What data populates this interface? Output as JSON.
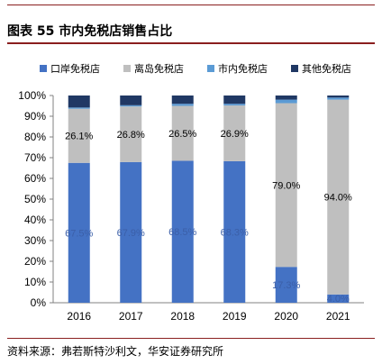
{
  "title": "图表 55 市内免税店销售占比",
  "source": "资料来源：弗若斯特沙利文，华安证券研究所",
  "chart_data": {
    "type": "bar",
    "stacked": true,
    "categories": [
      "2016",
      "2017",
      "2018",
      "2019",
      "2020",
      "2021"
    ],
    "ylim": [
      0,
      100
    ],
    "yticks": [
      "0%",
      "10%",
      "20%",
      "30%",
      "40%",
      "50%",
      "60%",
      "70%",
      "80%",
      "90%",
      "100%"
    ],
    "series": [
      {
        "name": "口岸免税店",
        "color": "#4472c4",
        "values": [
          67.5,
          67.9,
          68.5,
          68.3,
          17.3,
          4.0
        ],
        "labels": [
          "67.5%",
          "67.9%",
          "68.5%",
          "68.3%",
          "17.3%",
          "4.0%"
        ]
      },
      {
        "name": "离岛免税店",
        "color": "#bfbfbf",
        "values": [
          26.1,
          26.8,
          26.5,
          26.9,
          79.0,
          94.0
        ],
        "labels": [
          "26.1%",
          "26.8%",
          "26.5%",
          "26.9%",
          "79.0%",
          "94.0%"
        ]
      },
      {
        "name": "市内免税店",
        "color": "#5b9bd5",
        "values": [
          0.6,
          0.6,
          1.0,
          0.8,
          1.7,
          1.0
        ],
        "labels": []
      },
      {
        "name": "其他免税店",
        "color": "#203864",
        "values": [
          5.8,
          4.7,
          4.0,
          4.0,
          2.0,
          1.0
        ],
        "labels": []
      }
    ],
    "grid": false,
    "legend": "top"
  }
}
